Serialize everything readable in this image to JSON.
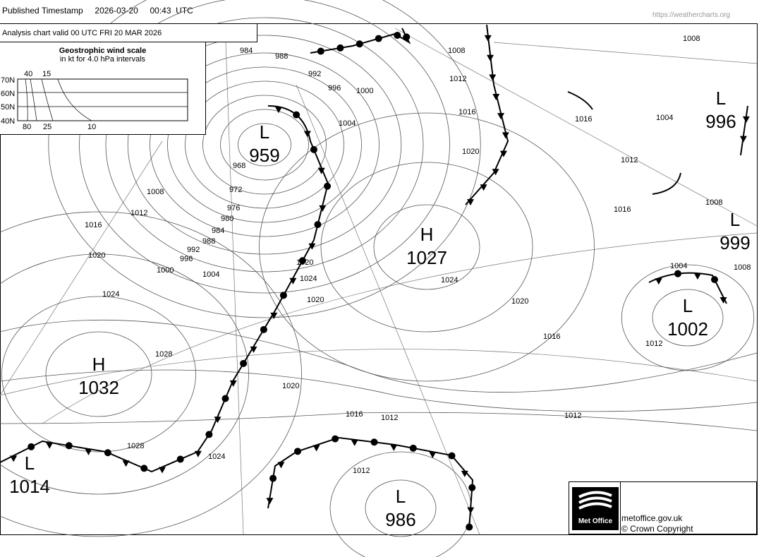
{
  "header": {
    "label": "Published Timestamp",
    "date": "2026-03-20",
    "time": "00:43  UTC",
    "url": "https://weathercharts.org"
  },
  "chart": {
    "valid": "Analysis chart  valid 00 UTC FRI 20  MAR 2026"
  },
  "wind_scale": {
    "title": "Geostrophic wind scale",
    "subtitle": "in kt for 4.0 hPa intervals",
    "lat_labels": [
      "70N",
      "60N",
      "50N",
      "40N"
    ],
    "top_labels": [
      "40",
      "15"
    ],
    "bottom_labels": [
      "80",
      "25",
      "10"
    ]
  },
  "centres": [
    {
      "type": "L",
      "value": "959"
    },
    {
      "type": "H",
      "value": "1027"
    },
    {
      "type": "L",
      "value": "996"
    },
    {
      "type": "L",
      "value": "999"
    },
    {
      "type": "L",
      "value": "1002"
    },
    {
      "type": "H",
      "value": "1032"
    },
    {
      "type": "L",
      "value": "1014"
    },
    {
      "type": "L",
      "value": "986"
    }
  ],
  "isobar_labels": [
    "984",
    "988",
    "992",
    "996",
    "1000",
    "1004",
    "1008",
    "1012",
    "1016",
    "1020",
    "1008",
    "1012",
    "1016",
    "1020",
    "1024",
    "1028",
    "968",
    "972",
    "976",
    "980",
    "984",
    "988",
    "992",
    "996",
    "1000",
    "1004",
    "1008",
    "1012",
    "1016",
    "1020",
    "1024",
    "1020",
    "1016",
    "1012",
    "1012",
    "1020",
    "1016",
    "1012",
    "1004",
    "1008",
    "1028",
    "1024",
    "1020",
    "1004",
    "1016",
    "1008",
    "1024",
    "1012"
  ],
  "colors": {
    "isobar": "#555555",
    "front": "#000000",
    "background": "#ffffff"
  },
  "footer": {
    "logo_text": "Met Office",
    "site": "metoffice.gov.uk",
    "copyright": "© Crown Copyright"
  }
}
